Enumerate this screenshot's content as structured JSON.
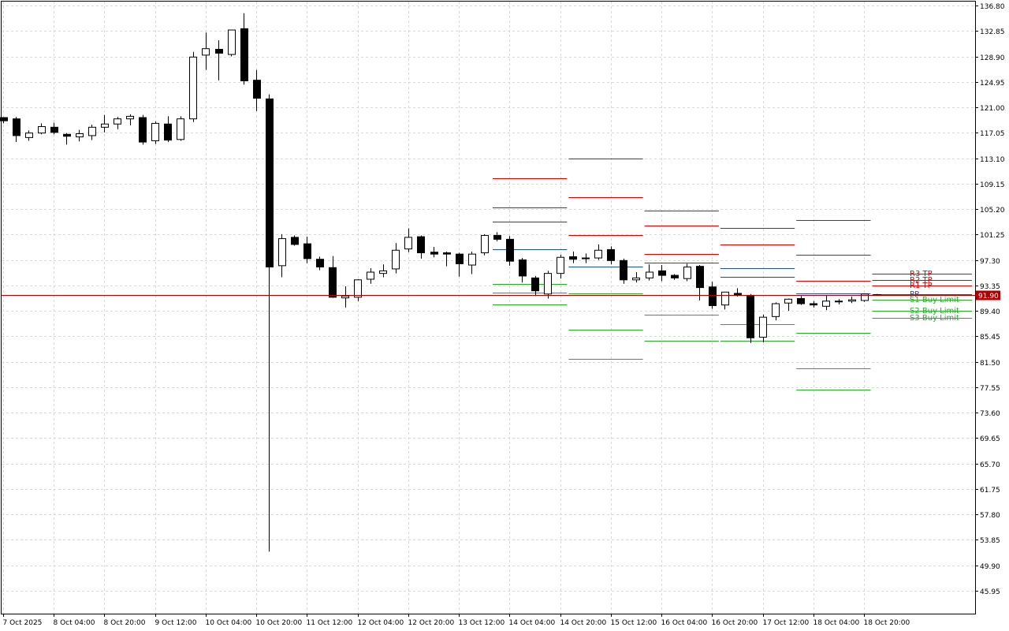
{
  "chart_data": {
    "type": "candlestick",
    "title": "",
    "xlabel": "",
    "ylabel": "",
    "ylim": [
      42.0,
      137.4
    ],
    "y_ticks": [
      136.8,
      132.85,
      128.9,
      124.95,
      121.0,
      117.05,
      113.1,
      109.15,
      105.2,
      101.25,
      97.3,
      93.35,
      89.4,
      85.45,
      81.5,
      77.55,
      73.6,
      69.65,
      65.7,
      61.75,
      57.8,
      53.85,
      49.9,
      45.95
    ],
    "x_ticks": [
      "7 Oct 2025",
      "8 Oct 04:00",
      "8 Oct 20:00",
      "9 Oct 12:00",
      "10 Oct 04:00",
      "10 Oct 20:00",
      "11 Oct 12:00",
      "12 Oct 04:00",
      "12 Oct 20:00",
      "13 Oct 12:00",
      "14 Oct 04:00",
      "14 Oct 20:00",
      "15 Oct 12:00",
      "16 Oct 04:00",
      "16 Oct 20:00",
      "17 Oct 12:00",
      "18 Oct 04:00",
      "18 Oct 20:00"
    ],
    "grid": true,
    "bull_color": "#ffffff",
    "bear_color": "#000000",
    "current_price": {
      "label": "91.90",
      "value": 91.9,
      "color": "#b20000"
    },
    "candles": [
      [
        119.4,
        119.4,
        118.5,
        118.9
      ],
      [
        119.2,
        119.5,
        115.6,
        116.6
      ],
      [
        116.3,
        117.4,
        115.8,
        117.0
      ],
      [
        117.0,
        118.5,
        116.8,
        118.0
      ],
      [
        117.9,
        118.6,
        116.8,
        117.1
      ],
      [
        116.8,
        117.0,
        115.2,
        116.5
      ],
      [
        116.4,
        117.5,
        115.7,
        116.9
      ],
      [
        116.6,
        118.3,
        115.9,
        117.9
      ],
      [
        117.9,
        119.8,
        117.1,
        118.4
      ],
      [
        118.4,
        119.5,
        117.6,
        119.2
      ],
      [
        119.2,
        119.9,
        118.2,
        119.6
      ],
      [
        119.4,
        119.8,
        115.2,
        115.6
      ],
      [
        115.8,
        118.8,
        115.3,
        118.5
      ],
      [
        118.4,
        119.6,
        115.6,
        115.9
      ],
      [
        116.0,
        119.6,
        115.8,
        119.2
      ],
      [
        119.2,
        129.6,
        118.7,
        128.8
      ],
      [
        129.1,
        132.6,
        126.8,
        130.1
      ],
      [
        130.0,
        131.4,
        125.2,
        129.4
      ],
      [
        129.2,
        133.0,
        128.9,
        133.0
      ],
      [
        133.2,
        135.6,
        124.5,
        125.1
      ],
      [
        125.2,
        126.8,
        120.4,
        122.4
      ],
      [
        122.3,
        123.0,
        52.0,
        96.2
      ],
      [
        96.4,
        101.3,
        94.6,
        100.6
      ],
      [
        100.8,
        101.1,
        99.5,
        99.7
      ],
      [
        99.8,
        100.9,
        96.8,
        97.5
      ],
      [
        97.4,
        97.8,
        95.7,
        96.2
      ],
      [
        96.1,
        97.9,
        91.4,
        91.5
      ],
      [
        91.4,
        93.2,
        89.9,
        91.7
      ],
      [
        91.5,
        94.3,
        90.9,
        94.2
      ],
      [
        94.3,
        96.0,
        93.6,
        95.4
      ],
      [
        95.2,
        96.6,
        94.6,
        95.6
      ],
      [
        95.9,
        99.9,
        95.2,
        98.8
      ],
      [
        99.0,
        102.2,
        98.5,
        100.8
      ],
      [
        100.9,
        101.1,
        97.5,
        98.4
      ],
      [
        98.5,
        99.3,
        97.7,
        98.2
      ],
      [
        98.4,
        98.6,
        96.3,
        98.2
      ],
      [
        98.2,
        98.4,
        94.7,
        96.7
      ],
      [
        96.5,
        98.6,
        95.1,
        98.2
      ],
      [
        98.4,
        101.3,
        98.0,
        101.1
      ],
      [
        101.1,
        101.6,
        100.2,
        100.5
      ],
      [
        100.5,
        101.0,
        96.4,
        97.1
      ],
      [
        97.3,
        97.6,
        93.8,
        94.8
      ],
      [
        94.5,
        94.8,
        91.7,
        92.5
      ],
      [
        92.0,
        95.6,
        91.3,
        95.2
      ],
      [
        95.2,
        98.1,
        94.4,
        97.7
      ],
      [
        97.8,
        98.6,
        96.8,
        97.4
      ],
      [
        97.5,
        98.3,
        96.8,
        97.6
      ],
      [
        97.6,
        99.7,
        97.3,
        98.8
      ],
      [
        98.9,
        99.4,
        96.6,
        97.2
      ],
      [
        97.2,
        97.5,
        93.6,
        94.2
      ],
      [
        94.2,
        95.4,
        93.8,
        94.5
      ],
      [
        94.5,
        96.6,
        94.1,
        95.4
      ],
      [
        95.6,
        96.5,
        94.0,
        94.9
      ],
      [
        94.9,
        95.1,
        94.2,
        94.5
      ],
      [
        94.4,
        96.7,
        94.0,
        96.2
      ],
      [
        96.3,
        96.5,
        91.0,
        93.0
      ],
      [
        93.1,
        93.9,
        89.7,
        90.2
      ],
      [
        90.3,
        92.3,
        89.6,
        92.3
      ],
      [
        92.1,
        92.9,
        91.6,
        91.9
      ],
      [
        91.8,
        92.0,
        84.4,
        85.2
      ],
      [
        85.3,
        88.8,
        84.5,
        88.4
      ],
      [
        88.5,
        90.7,
        87.9,
        90.5
      ],
      [
        90.6,
        91.3,
        89.4,
        91.2
      ],
      [
        91.3,
        91.7,
        90.3,
        90.5
      ],
      [
        90.5,
        90.9,
        89.9,
        90.3
      ],
      [
        90.1,
        91.8,
        89.5,
        90.9
      ],
      [
        90.9,
        91.2,
        90.4,
        90.9
      ],
      [
        90.9,
        91.6,
        90.6,
        91.1
      ],
      [
        91.0,
        92.1,
        90.8,
        92.0
      ],
      [
        91.9,
        92.0,
        91.8,
        91.9
      ]
    ],
    "level_color_resistance": "#e00000",
    "level_color_pivot": "#1f4fa3",
    "level_color_support": "#2aa82a",
    "pivot_sessions": [
      {
        "r": [
          110.0,
          105.5,
          103.2
        ],
        "pp": 98.9,
        "s": [
          93.6,
          92.2,
          90.4
        ]
      },
      {
        "r": [
          113.0,
          107.0,
          101.2
        ],
        "pp": 96.3,
        "s": [
          92.1,
          86.4,
          81.9
        ]
      },
      {
        "r": [
          104.9,
          98.2,
          102.6
        ],
        "pp": 96.9,
        "s": [
          91.9,
          88.8,
          84.8
        ]
      },
      {
        "r": [
          102.3,
          99.7,
          94.7
        ],
        "pp": 96.0,
        "s": [
          91.9,
          87.3,
          84.7
        ]
      },
      {
        "r": [
          103.5,
          98.1,
          94.1
        ],
        "pp": 92.1,
        "s": [
          86.0,
          80.5,
          77.2
        ]
      }
    ],
    "current_levels": {
      "r": [
        95.2,
        94.2,
        93.3
      ],
      "pp": 92.0,
      "s": [
        91.1,
        89.4,
        88.3
      ]
    },
    "level_labels": [
      {
        "text": "R3 TP",
        "value": 95.2,
        "color": "#e00000"
      },
      {
        "text": "R2 TP",
        "value": 94.2,
        "color": "#e00000"
      },
      {
        "text": "R1 TP",
        "value": 93.3,
        "color": "#e00000"
      },
      {
        "text": "PP",
        "value": 92.0,
        "color": "#1f4fa3"
      },
      {
        "text": "S1 Buy Limit",
        "value": 91.1,
        "color": "#2aa82a"
      },
      {
        "text": "S2 Buy Limit",
        "value": 89.4,
        "color": "#2aa82a"
      },
      {
        "text": "S3 Buy Limit",
        "value": 88.3,
        "color": "#2aa82a"
      }
    ]
  }
}
